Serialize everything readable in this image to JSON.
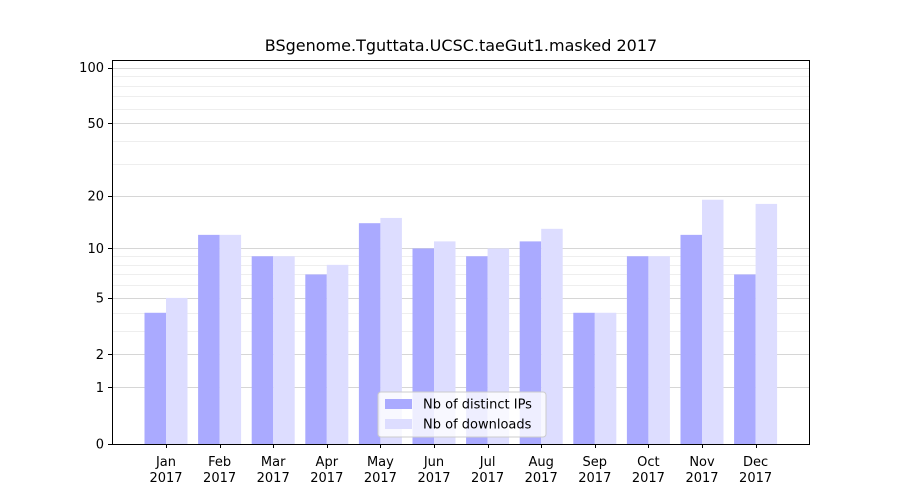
{
  "chart_data": {
    "type": "bar",
    "title": "BSgenome.Tguttata.UCSC.taeGut1.masked 2017",
    "xlabel": "",
    "ylabel": "",
    "categories": [
      [
        "Jan",
        "2017"
      ],
      [
        "Feb",
        "2017"
      ],
      [
        "Mar",
        "2017"
      ],
      [
        "Apr",
        "2017"
      ],
      [
        "May",
        "2017"
      ],
      [
        "Jun",
        "2017"
      ],
      [
        "Jul",
        "2017"
      ],
      [
        "Aug",
        "2017"
      ],
      [
        "Sep",
        "2017"
      ],
      [
        "Oct",
        "2017"
      ],
      [
        "Nov",
        "2017"
      ],
      [
        "Dec",
        "2017"
      ]
    ],
    "series": [
      {
        "name": "Nb of distinct IPs",
        "color": "#aaaaff",
        "values": [
          4,
          12,
          9,
          7,
          14,
          10,
          9,
          11,
          4,
          9,
          12,
          7
        ]
      },
      {
        "name": "Nb of downloads",
        "color": "#ddddff",
        "values": [
          5,
          12,
          9,
          8,
          15,
          11,
          10,
          13,
          4,
          9,
          19,
          18
        ]
      }
    ],
    "y_scale": "log1p",
    "ylim": [
      0,
      110
    ],
    "y_ticks": [
      0,
      1,
      2,
      5,
      10,
      20,
      50,
      100
    ],
    "y_tick_labels": [
      "0",
      "1",
      "2",
      "5",
      "10",
      "20",
      "50",
      "100"
    ],
    "grid": true,
    "legend_position": "bottom-center"
  }
}
